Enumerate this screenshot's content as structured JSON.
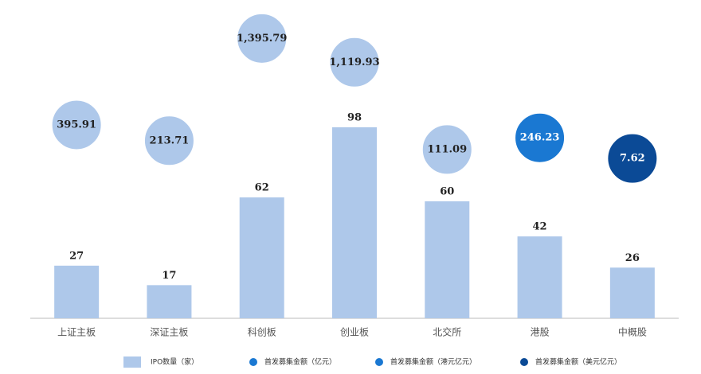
{
  "chart_data": {
    "type": "bar-bubble",
    "categories": [
      "上证主板",
      "深证主板",
      "科创板",
      "创业板",
      "北交所",
      "港股",
      "中概股"
    ],
    "series": [
      {
        "name": "IPO数量（家）",
        "color": "#aec8ea",
        "values": [
          27,
          17,
          62,
          98,
          60,
          42,
          26
        ]
      },
      {
        "name": "首发募集金额（亿元）",
        "color": "#aec8ea",
        "axis": "y2",
        "values": [
          395.91,
          213.71,
          1395.79,
          1119.93,
          111.09,
          null,
          null
        ],
        "value_labels": [
          "395.91",
          "213.71",
          "1,395.79",
          "1,119.93",
          "111.09",
          null,
          null
        ]
      },
      {
        "name": "首发募集金额（港元亿元）",
        "color": "#1a78d2",
        "axis": "y2",
        "values": [
          null,
          null,
          null,
          null,
          null,
          246.23,
          null
        ],
        "value_labels": [
          null,
          null,
          null,
          null,
          null,
          "246.23",
          null
        ]
      },
      {
        "name": "首发募集金额（美元亿元）",
        "color": "#0b4a96",
        "axis": "y2",
        "values": [
          null,
          null,
          null,
          null,
          null,
          null,
          7.62
        ],
        "value_labels": [
          null,
          null,
          null,
          null,
          null,
          null,
          "7.62"
        ]
      }
    ],
    "ylim": [
      0,
      100
    ],
    "y2lim": [
      0,
      1500
    ]
  }
}
